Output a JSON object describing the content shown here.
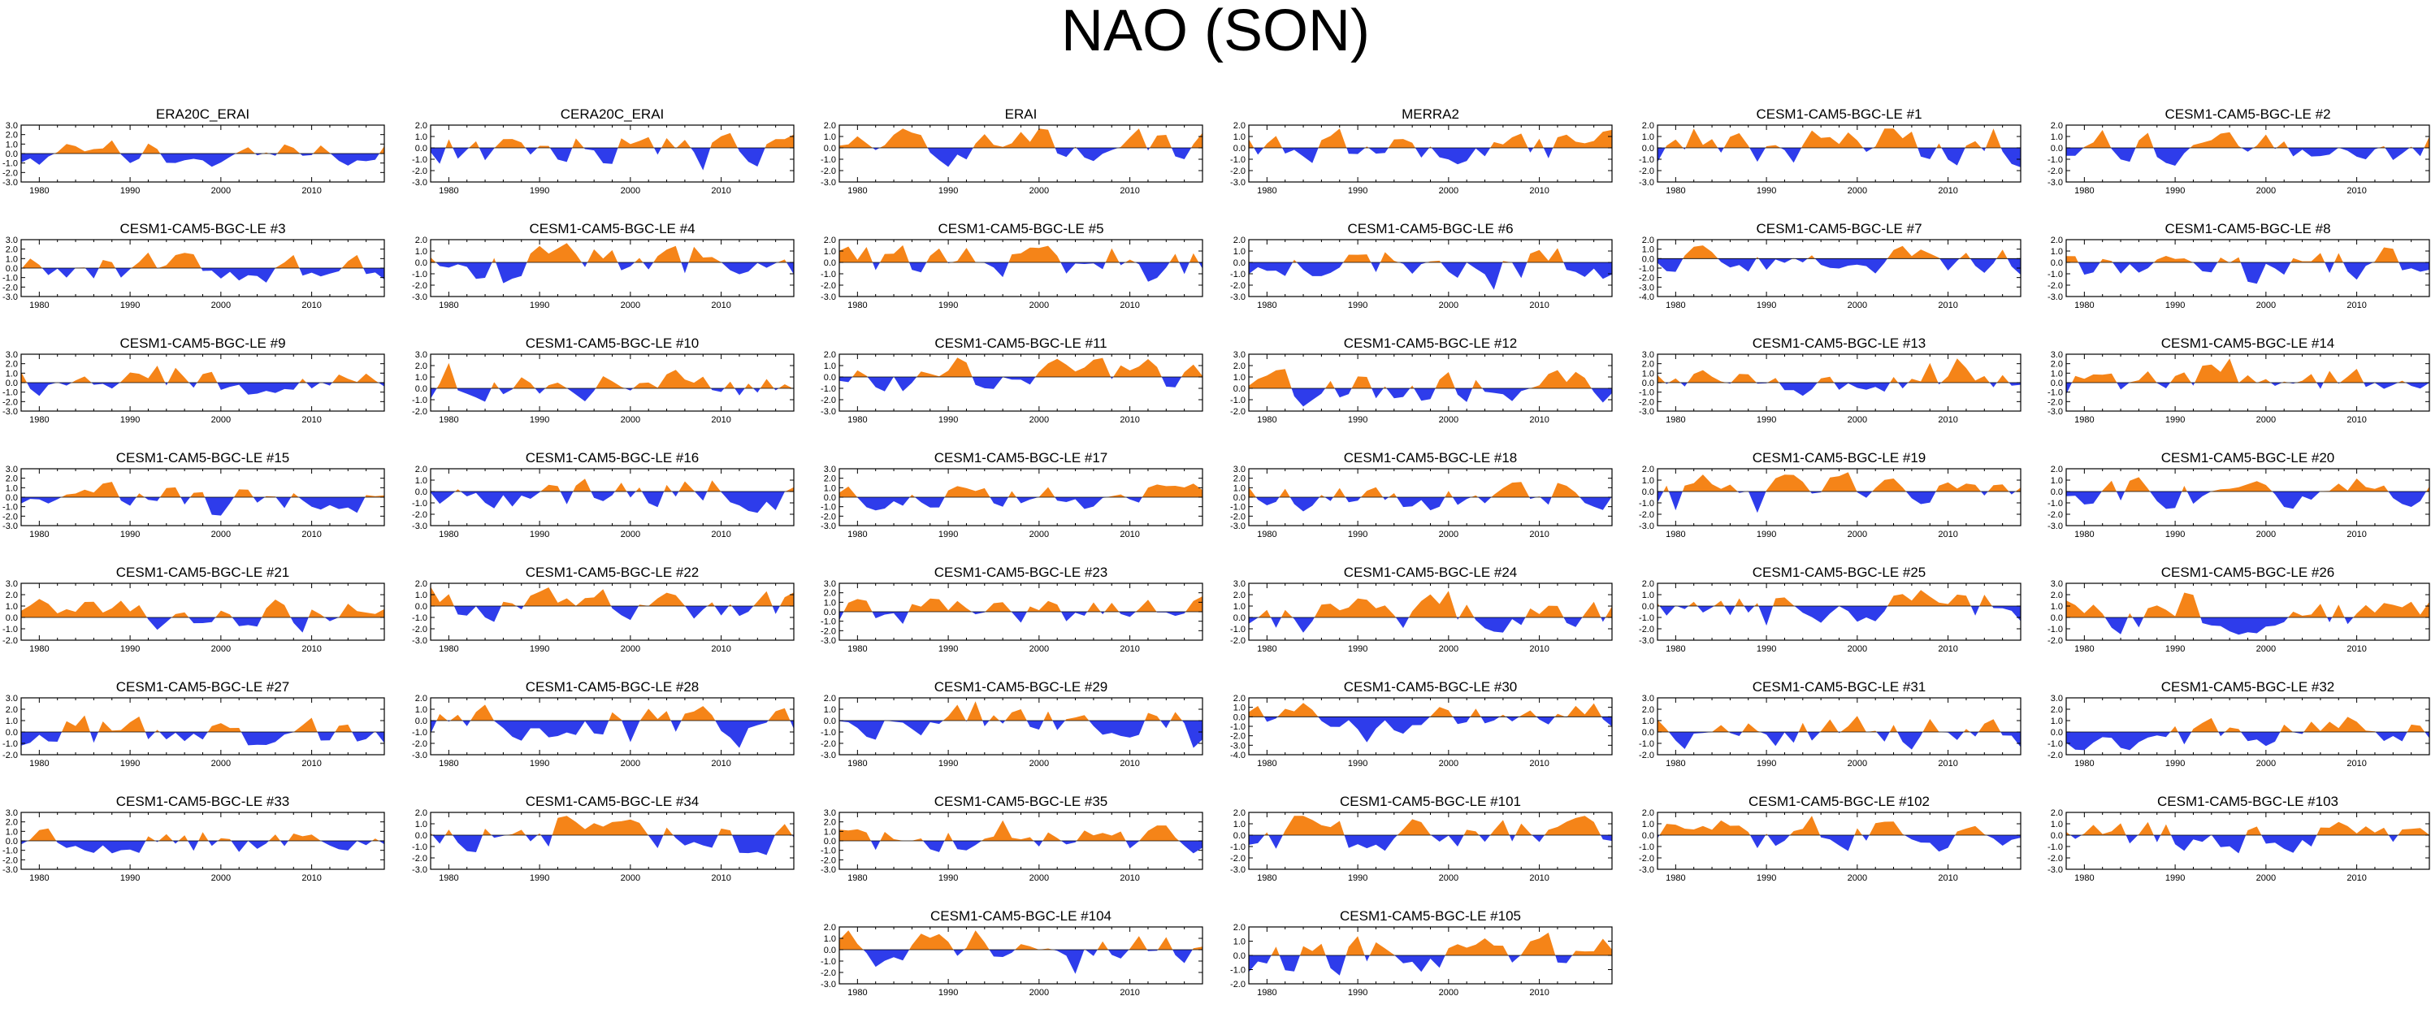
{
  "title": "NAO (SON)",
  "colors": {
    "positive": "#f58418",
    "negative": "#2e3ceb",
    "axis": "#000000"
  },
  "chart_data": {
    "type": "area",
    "title": "NAO (SON)",
    "x_range": [
      1978,
      2018
    ],
    "x_ticks": [
      1980,
      1990,
      2000,
      2010
    ],
    "panels": [
      {
        "title": "ERA20C_ERAI",
        "ylim": [
          -3.0,
          3.0
        ],
        "seed": 1
      },
      {
        "title": "CERA20C_ERAI",
        "ylim": [
          -3.0,
          2.0
        ],
        "seed": 2
      },
      {
        "title": "ERAI",
        "ylim": [
          -3.0,
          2.0
        ],
        "seed": 3
      },
      {
        "title": "MERRA2",
        "ylim": [
          -3.0,
          2.0
        ],
        "seed": 4
      },
      {
        "title": "CESM1-CAM5-BGC-LE #1",
        "ylim": [
          -3.0,
          2.0
        ],
        "seed": 5
      },
      {
        "title": "CESM1-CAM5-BGC-LE #2",
        "ylim": [
          -3.0,
          2.0
        ],
        "seed": 6
      },
      {
        "title": "CESM1-CAM5-BGC-LE #3",
        "ylim": [
          -3.0,
          3.0
        ],
        "seed": 7
      },
      {
        "title": "CESM1-CAM5-BGC-LE #4",
        "ylim": [
          -3.0,
          2.0
        ],
        "seed": 8
      },
      {
        "title": "CESM1-CAM5-BGC-LE #5",
        "ylim": [
          -3.0,
          2.0
        ],
        "seed": 9
      },
      {
        "title": "CESM1-CAM5-BGC-LE #6",
        "ylim": [
          -3.0,
          2.0
        ],
        "seed": 10
      },
      {
        "title": "CESM1-CAM5-BGC-LE #7",
        "ylim": [
          -4.0,
          2.0
        ],
        "seed": 11
      },
      {
        "title": "CESM1-CAM5-BGC-LE #8",
        "ylim": [
          -3.0,
          2.0
        ],
        "seed": 12
      },
      {
        "title": "CESM1-CAM5-BGC-LE #9",
        "ylim": [
          -3.0,
          3.0
        ],
        "seed": 13
      },
      {
        "title": "CESM1-CAM5-BGC-LE #10",
        "ylim": [
          -2.0,
          3.0
        ],
        "seed": 14
      },
      {
        "title": "CESM1-CAM5-BGC-LE #11",
        "ylim": [
          -3.0,
          2.0
        ],
        "seed": 15
      },
      {
        "title": "CESM1-CAM5-BGC-LE #12",
        "ylim": [
          -2.0,
          3.0
        ],
        "seed": 16
      },
      {
        "title": "CESM1-CAM5-BGC-LE #13",
        "ylim": [
          -3.0,
          3.0
        ],
        "seed": 17
      },
      {
        "title": "CESM1-CAM5-BGC-LE #14",
        "ylim": [
          -3.0,
          3.0
        ],
        "seed": 18
      },
      {
        "title": "CESM1-CAM5-BGC-LE #15",
        "ylim": [
          -3.0,
          3.0
        ],
        "seed": 19
      },
      {
        "title": "CESM1-CAM5-BGC-LE #16",
        "ylim": [
          -3.0,
          2.0
        ],
        "seed": 20
      },
      {
        "title": "CESM1-CAM5-BGC-LE #17",
        "ylim": [
          -3.0,
          3.0
        ],
        "seed": 21
      },
      {
        "title": "CESM1-CAM5-BGC-LE #18",
        "ylim": [
          -3.0,
          3.0
        ],
        "seed": 22
      },
      {
        "title": "CESM1-CAM5-BGC-LE #19",
        "ylim": [
          -3.0,
          2.0
        ],
        "seed": 23
      },
      {
        "title": "CESM1-CAM5-BGC-LE #20",
        "ylim": [
          -3.0,
          2.0
        ],
        "seed": 24
      },
      {
        "title": "CESM1-CAM5-BGC-LE #21",
        "ylim": [
          -2.0,
          3.0
        ],
        "seed": 25
      },
      {
        "title": "CESM1-CAM5-BGC-LE #22",
        "ylim": [
          -3.0,
          2.0
        ],
        "seed": 26
      },
      {
        "title": "CESM1-CAM5-BGC-LE #23",
        "ylim": [
          -3.0,
          3.0
        ],
        "seed": 27
      },
      {
        "title": "CESM1-CAM5-BGC-LE #24",
        "ylim": [
          -2.0,
          3.0
        ],
        "seed": 28
      },
      {
        "title": "CESM1-CAM5-BGC-LE #25",
        "ylim": [
          -3.0,
          2.0
        ],
        "seed": 29
      },
      {
        "title": "CESM1-CAM5-BGC-LE #26",
        "ylim": [
          -2.0,
          3.0
        ],
        "seed": 30
      },
      {
        "title": "CESM1-CAM5-BGC-LE #27",
        "ylim": [
          -2.0,
          3.0
        ],
        "seed": 31
      },
      {
        "title": "CESM1-CAM5-BGC-LE #28",
        "ylim": [
          -3.0,
          2.0
        ],
        "seed": 32
      },
      {
        "title": "CESM1-CAM5-BGC-LE #29",
        "ylim": [
          -3.0,
          2.0
        ],
        "seed": 33
      },
      {
        "title": "CESM1-CAM5-BGC-LE #30",
        "ylim": [
          -4.0,
          2.0
        ],
        "seed": 34
      },
      {
        "title": "CESM1-CAM5-BGC-LE #31",
        "ylim": [
          -2.0,
          3.0
        ],
        "seed": 35
      },
      {
        "title": "CESM1-CAM5-BGC-LE #32",
        "ylim": [
          -2.0,
          3.0
        ],
        "seed": 36
      },
      {
        "title": "CESM1-CAM5-BGC-LE #33",
        "ylim": [
          -3.0,
          3.0
        ],
        "seed": 37
      },
      {
        "title": "CESM1-CAM5-BGC-LE #34",
        "ylim": [
          -3.0,
          2.0
        ],
        "seed": 38
      },
      {
        "title": "CESM1-CAM5-BGC-LE #35",
        "ylim": [
          -3.0,
          3.0
        ],
        "seed": 39
      },
      {
        "title": "CESM1-CAM5-BGC-LE #101",
        "ylim": [
          -3.0,
          2.0
        ],
        "seed": 40
      },
      {
        "title": "CESM1-CAM5-BGC-LE #102",
        "ylim": [
          -3.0,
          2.0
        ],
        "seed": 41
      },
      {
        "title": "CESM1-CAM5-BGC-LE #103",
        "ylim": [
          -3.0,
          2.0
        ],
        "seed": 42
      },
      {
        "title": "CESM1-CAM5-BGC-LE #104",
        "ylim": [
          -3.0,
          2.0
        ],
        "seed": 43
      },
      {
        "title": "CESM1-CAM5-BGC-LE #105",
        "ylim": [
          -2.0,
          2.0
        ],
        "seed": 44
      }
    ]
  }
}
